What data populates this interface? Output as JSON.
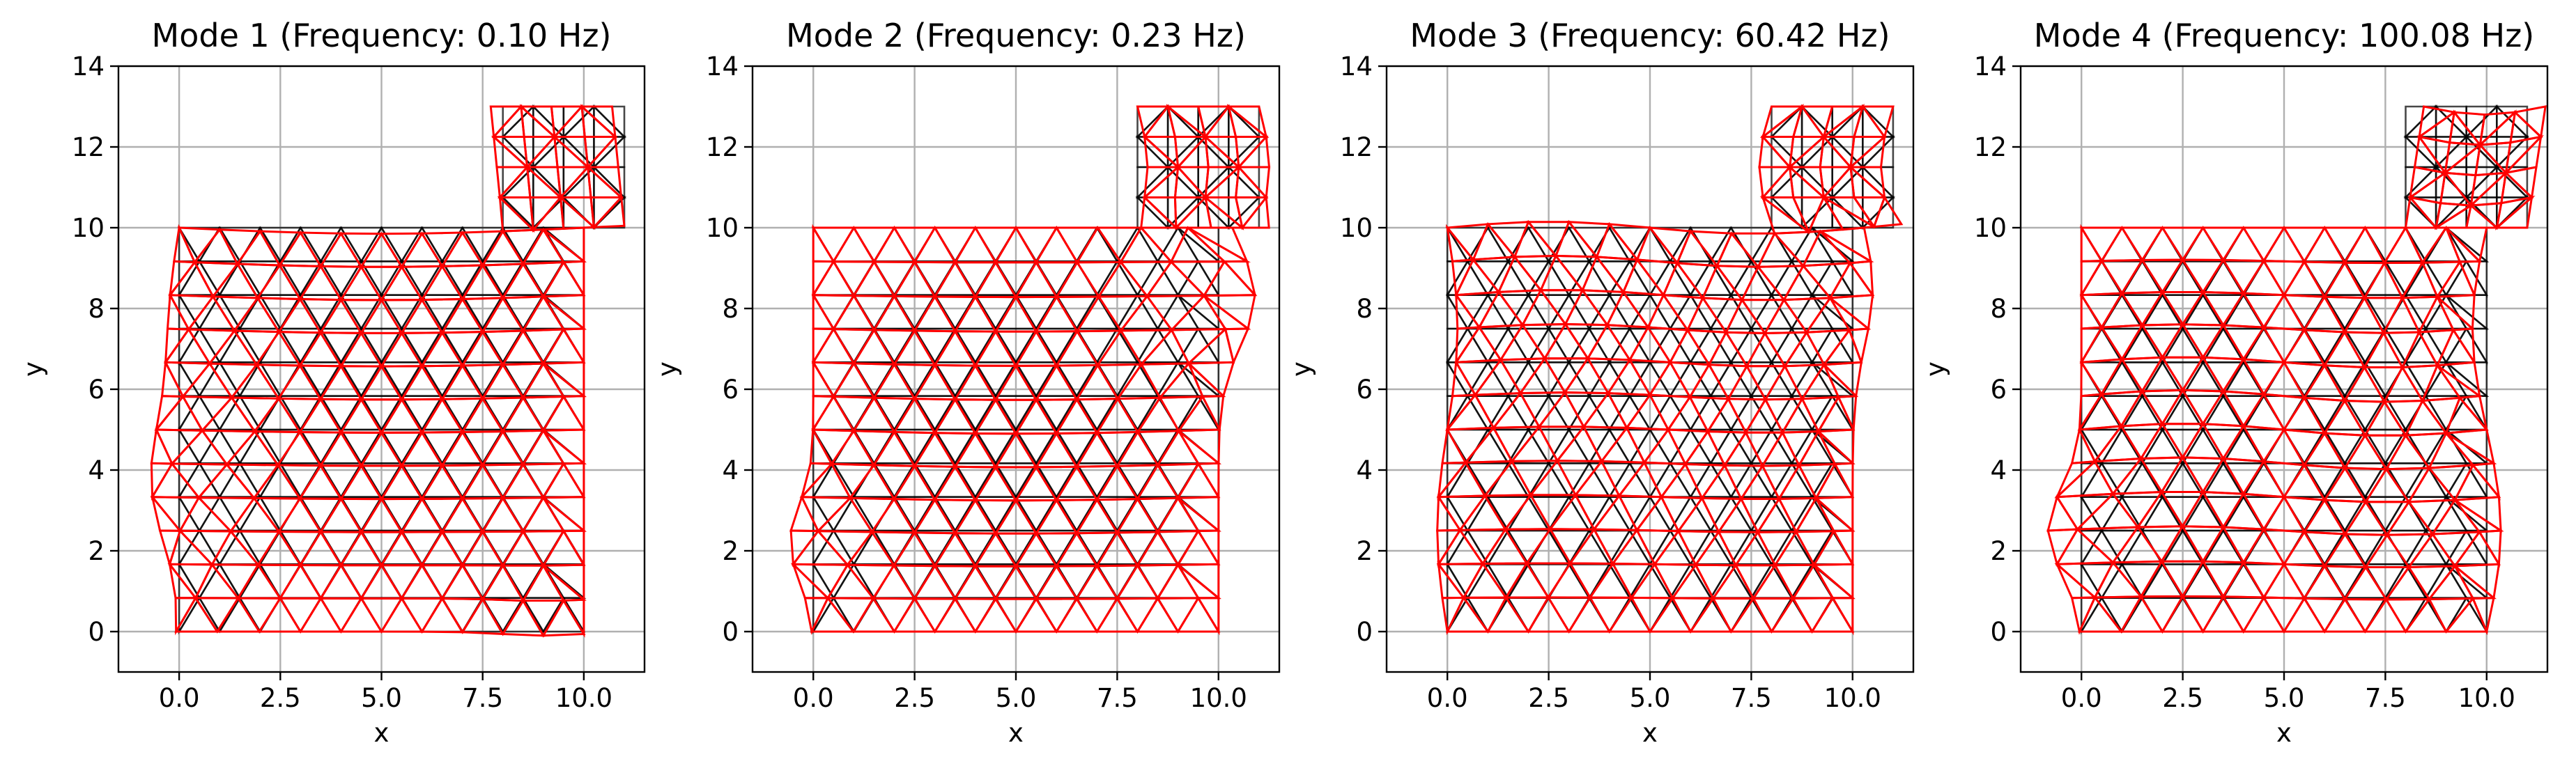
{
  "chart_data": [
    {
      "type": "mesh",
      "title": "Mode 1 (Frequency: 0.10 Hz)",
      "xlabel": "x",
      "ylabel": "y",
      "xlim": [
        -1.5,
        11.5
      ],
      "ylim": [
        -1,
        14
      ],
      "xticks": [
        0.0,
        2.5,
        5.0,
        7.5,
        10.0
      ],
      "xtick_labels": [
        "0.0",
        "2.5",
        "5.0",
        "7.5",
        "10.0"
      ],
      "yticks": [
        0,
        2,
        4,
        6,
        8,
        10,
        12,
        14
      ],
      "ytick_labels": [
        "0",
        "2",
        "4",
        "6",
        "8",
        "10",
        "12",
        "14"
      ],
      "grid": true,
      "domain": {
        "rect": [
          [
            0,
            0
          ],
          [
            10,
            10
          ]
        ],
        "tab": [
          [
            8,
            10
          ],
          [
            11,
            13
          ]
        ]
      },
      "series": [
        {
          "role": "undeformed mesh",
          "color": "#404040"
        },
        {
          "role": "deformed mesh",
          "color": "#ff0000"
        }
      ],
      "mode": "m1"
    },
    {
      "type": "mesh",
      "title": "Mode 2 (Frequency: 0.23 Hz)",
      "xlabel": "x",
      "ylabel": "y",
      "xlim": [
        -1.5,
        11.5
      ],
      "ylim": [
        -1,
        14
      ],
      "xticks": [
        0.0,
        2.5,
        5.0,
        7.5,
        10.0
      ],
      "xtick_labels": [
        "0.0",
        "2.5",
        "5.0",
        "7.5",
        "10.0"
      ],
      "yticks": [
        0,
        2,
        4,
        6,
        8,
        10,
        12,
        14
      ],
      "ytick_labels": [
        "0",
        "2",
        "4",
        "6",
        "8",
        "10",
        "12",
        "14"
      ],
      "grid": true,
      "domain": {
        "rect": [
          [
            0,
            0
          ],
          [
            10,
            10
          ]
        ],
        "tab": [
          [
            8,
            10
          ],
          [
            11,
            13
          ]
        ]
      },
      "series": [
        {
          "role": "undeformed mesh",
          "color": "#404040"
        },
        {
          "role": "deformed mesh",
          "color": "#ff0000"
        }
      ],
      "mode": "m2"
    },
    {
      "type": "mesh",
      "title": "Mode 3 (Frequency: 60.42 Hz)",
      "xlabel": "x",
      "ylabel": "y",
      "xlim": [
        -1.5,
        11.5
      ],
      "ylim": [
        -1,
        14
      ],
      "xticks": [
        0.0,
        2.5,
        5.0,
        7.5,
        10.0
      ],
      "xtick_labels": [
        "0.0",
        "2.5",
        "5.0",
        "7.5",
        "10.0"
      ],
      "yticks": [
        0,
        2,
        4,
        6,
        8,
        10,
        12,
        14
      ],
      "ytick_labels": [
        "0",
        "2",
        "4",
        "6",
        "8",
        "10",
        "12",
        "14"
      ],
      "grid": true,
      "domain": {
        "rect": [
          [
            0,
            0
          ],
          [
            10,
            10
          ]
        ],
        "tab": [
          [
            8,
            10
          ],
          [
            11,
            13
          ]
        ]
      },
      "series": [
        {
          "role": "undeformed mesh",
          "color": "#404040"
        },
        {
          "role": "deformed mesh",
          "color": "#ff0000"
        }
      ],
      "mode": "m3"
    },
    {
      "type": "mesh",
      "title": "Mode 4 (Frequency: 100.08 Hz)",
      "xlabel": "x",
      "ylabel": "y",
      "xlim": [
        -1.5,
        11.5
      ],
      "ylim": [
        -1,
        14
      ],
      "xticks": [
        0.0,
        2.5,
        5.0,
        7.5,
        10.0
      ],
      "xtick_labels": [
        "0.0",
        "2.5",
        "5.0",
        "7.5",
        "10.0"
      ],
      "yticks": [
        0,
        2,
        4,
        6,
        8,
        10,
        12,
        14
      ],
      "ytick_labels": [
        "0",
        "2",
        "4",
        "6",
        "8",
        "10",
        "12",
        "14"
      ],
      "grid": true,
      "domain": {
        "rect": [
          [
            0,
            0
          ],
          [
            10,
            10
          ]
        ],
        "tab": [
          [
            8,
            10
          ],
          [
            11,
            13
          ]
        ]
      },
      "series": [
        {
          "role": "undeformed mesh",
          "color": "#404040"
        },
        {
          "role": "deformed mesh",
          "color": "#ff0000"
        }
      ],
      "mode": "m4"
    }
  ]
}
